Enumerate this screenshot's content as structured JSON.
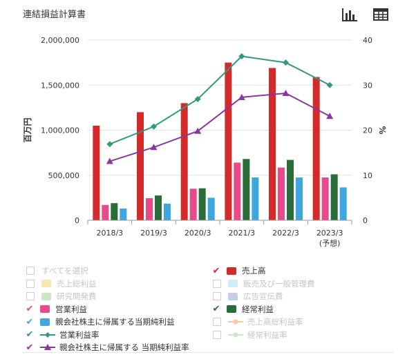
{
  "title": "連結損益計算書",
  "toolbar": {
    "chart_icon": "bar-chart-icon",
    "table_icon": "table-icon"
  },
  "chart_data": {
    "type": "bar",
    "categories": [
      "2018/3",
      "2019/3",
      "2020/3",
      "2021/3",
      "2022/3",
      "2023/3"
    ],
    "category_sublabels": [
      "",
      "",
      "",
      "",
      "",
      "(予想)"
    ],
    "ylabel_left": "百万円",
    "ylabel_right": "%",
    "ylim_left": [
      0,
      2000000
    ],
    "ylim_right": [
      0,
      40
    ],
    "yticks_left": [
      "0",
      "500,000",
      "1,000,000",
      "1,500,000",
      "2,000,000"
    ],
    "yticks_right": [
      "0",
      "10",
      "20",
      "30",
      "40"
    ],
    "grid": true,
    "bar_series": [
      {
        "name": "売上高",
        "color": "#d42a2a",
        "values": [
          1050000,
          1200000,
          1300000,
          1750000,
          1690000,
          1590000
        ]
      },
      {
        "name": "営業利益",
        "color": "#e84a8a",
        "values": [
          170000,
          245000,
          350000,
          640000,
          585000,
          475000
        ]
      },
      {
        "name": "経常利益",
        "color": "#2a6b3a",
        "values": [
          190000,
          275000,
          355000,
          680000,
          670000,
          510000
        ]
      },
      {
        "name": "親会社株主に帰属する当期純利益",
        "color": "#3fa7dd",
        "values": [
          130000,
          185000,
          250000,
          475000,
          475000,
          365000
        ]
      }
    ],
    "line_series": [
      {
        "name": "営業利益率",
        "color": "#2f9a80",
        "marker": "diamond",
        "values": [
          16.9,
          20.8,
          26.9,
          36.4,
          35.0,
          30.0
        ]
      },
      {
        "name": "親会社株主に帰属する 当期純利益率",
        "color": "#8a36a2",
        "marker": "triangle",
        "values": [
          13.1,
          16.2,
          19.8,
          27.3,
          28.2,
          23.1
        ]
      }
    ]
  },
  "legend": {
    "left": [
      {
        "label": "すべてを選択",
        "checked": false,
        "kind": "none",
        "color": ""
      },
      {
        "label": "売上総利益",
        "checked": false,
        "kind": "bar",
        "color": "#fbe7b5"
      },
      {
        "label": "研究開発費",
        "checked": false,
        "kind": "bar",
        "color": "#c9e8c4"
      },
      {
        "label": "営業利益",
        "checked": true,
        "kind": "bar",
        "color": "#e84a8a",
        "check_color": "#e84a8a"
      },
      {
        "label": "親会社株主に帰属する当期純利益",
        "checked": true,
        "kind": "bar",
        "color": "#3fa7dd",
        "check_color": "#3fa7dd"
      },
      {
        "label": "営業利益率",
        "checked": true,
        "kind": "diamond",
        "color": "#2f9a80",
        "check_color": "#2f9a80"
      },
      {
        "label": "親会社株主に帰属する 当期純利益率",
        "checked": true,
        "kind": "triangle",
        "color": "#8a36a2",
        "check_color": "#8a36a2"
      }
    ],
    "right": [
      {
        "label": "売上高",
        "checked": true,
        "kind": "bar",
        "color": "#d42a2a",
        "check_color": "#d42a2a"
      },
      {
        "label": "販売及び一般管理費",
        "checked": false,
        "kind": "bar",
        "color": "#cdeef8"
      },
      {
        "label": "広告宣伝費",
        "checked": false,
        "kind": "bar",
        "color": "#c4cde6"
      },
      {
        "label": "経常利益",
        "checked": true,
        "kind": "bar",
        "color": "#2a6b3a",
        "check_color": "#2a6b3a"
      },
      {
        "label": "売上高総利益率",
        "checked": false,
        "kind": "line",
        "color": "#f6c9a4"
      },
      {
        "label": "経常利益率",
        "checked": false,
        "kind": "line",
        "color": "#cbe7c6"
      }
    ]
  }
}
